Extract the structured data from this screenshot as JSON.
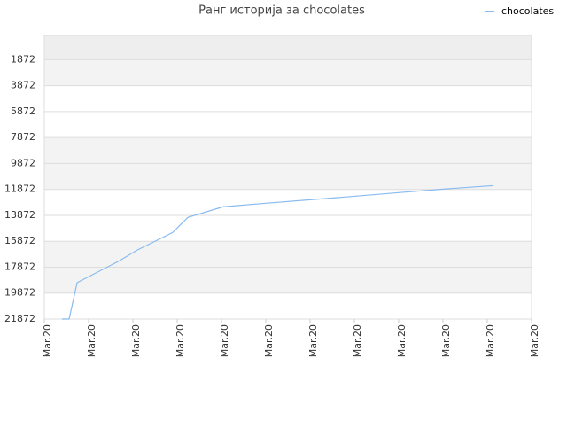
{
  "chart_data": {
    "type": "line",
    "title": "Ранг историја за chocolates",
    "series": [
      {
        "name": "chocolates",
        "color": "#88bbee",
        "x": [
          0.4,
          0.56,
          0.74,
          1.7,
          2.1,
          2.9,
          3.24,
          4.04,
          5,
          6,
          7,
          8,
          9,
          10.12
        ],
        "values": [
          21872,
          21872,
          19070,
          17370,
          16550,
          15190,
          14030,
          13210,
          12940,
          12670,
          12400,
          12120,
          11850,
          11580
        ]
      }
    ],
    "xlim": [
      0,
      11
    ],
    "xticks": [
      {
        "value": 0,
        "label": "Mar.20"
      },
      {
        "value": 1,
        "label": "Mar.20"
      },
      {
        "value": 2,
        "label": "Mar.20"
      },
      {
        "value": 3,
        "label": "Mar.20"
      },
      {
        "value": 4,
        "label": "Mar.20"
      },
      {
        "value": 5,
        "label": "Mar.20"
      },
      {
        "value": 6,
        "label": "Mar.20"
      },
      {
        "value": 7,
        "label": "Mar.20"
      },
      {
        "value": 8,
        "label": "Mar.20"
      },
      {
        "value": 9,
        "label": "Mar.20"
      },
      {
        "value": 10,
        "label": "Mar.20"
      },
      {
        "value": 11,
        "label": "Mar.20"
      }
    ],
    "ylim": [
      21872,
      0
    ],
    "yticks": [
      1872,
      3872,
      5872,
      7872,
      9872,
      11872,
      13872,
      15872,
      17872,
      19872,
      21872
    ],
    "grid": true,
    "legend": "top-right"
  }
}
